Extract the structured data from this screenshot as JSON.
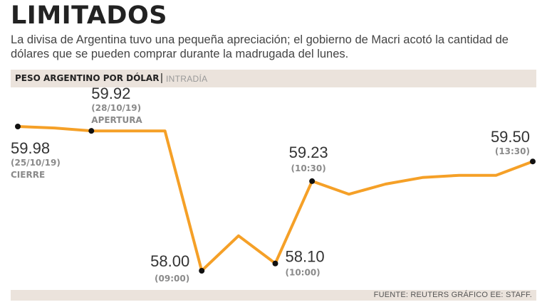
{
  "header": {
    "title": "LIMITADOS",
    "subtitle": "La divisa de Argentina tuvo una pequeña apreciación; el gobierno de Macri acotó la cantidad de dólares que se pueden comprar durante la madrugada del lunes."
  },
  "band": {
    "title": "PESO ARGENTINO POR DÓLAR",
    "separator": "|",
    "subtitle": "INTRADÍA"
  },
  "footer": {
    "source": "FUENTE: REUTERS GRÁFICO EE: STAFF."
  },
  "colors": {
    "line": "#f5a027",
    "point": "#111111",
    "band": "#ebe3dc"
  },
  "chart_data": {
    "type": "line",
    "title": "PESO ARGENTINO POR DÓLAR",
    "subtitle": "INTRADÍA",
    "ylim": [
      58.0,
      59.98
    ],
    "grid": false,
    "series": [
      {
        "values": [
          59.98,
          59.96,
          59.92,
          59.92,
          59.92,
          58.0,
          58.48,
          58.1,
          59.23,
          59.05,
          59.19,
          59.28,
          59.31,
          59.31,
          59.5
        ]
      }
    ],
    "annotations": [
      {
        "index": 0,
        "value": "59.98",
        "lines": [
          "(25/10/19)",
          "CIERRE"
        ]
      },
      {
        "index": 2,
        "value": "59.92",
        "lines": [
          "(28/10/19)",
          "APERTURA"
        ]
      },
      {
        "index": 5,
        "value": "58.00",
        "lines": [
          "(09:00)"
        ]
      },
      {
        "index": 7,
        "value": "58.10",
        "lines": [
          "(10:00)"
        ]
      },
      {
        "index": 8,
        "value": "59.23",
        "lines": [
          "(10:30)"
        ]
      },
      {
        "index": 14,
        "value": "59.50",
        "lines": [
          "(13:30)"
        ]
      }
    ]
  }
}
